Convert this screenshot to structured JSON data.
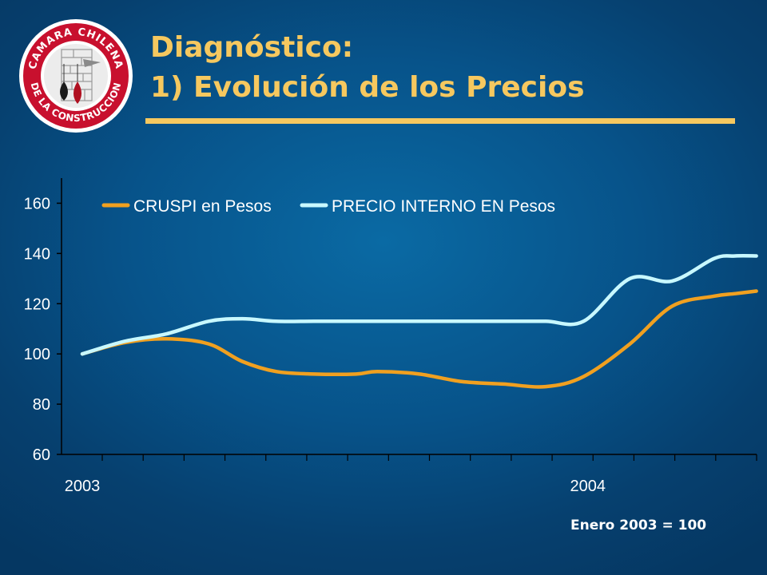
{
  "header": {
    "title_line1": "Diagnóstico:",
    "title_line2": "1) Evolución de los Precios"
  },
  "logo": {
    "text_top": "CAMARA CHILENA",
    "text_bottom": "DE LA CONSTRUCCION",
    "ring_color": "#c8102e"
  },
  "colors": {
    "title": "#f6c85f",
    "series_cruspi": "#f0a020",
    "series_precio": "#c8f8ff"
  },
  "chart_data": {
    "type": "line",
    "ylim": [
      60,
      170
    ],
    "yticks": [
      60,
      80,
      100,
      120,
      140,
      160
    ],
    "x_ticks": [
      {
        "label": "2003",
        "index": 0
      },
      {
        "label": "2004",
        "index": 12
      }
    ],
    "x_count": 16,
    "legend_position": "top",
    "grid": false,
    "series": [
      {
        "name": "CRUSPI en Pesos",
        "color": "#f0a020",
        "values": [
          100,
          104.5,
          106,
          104,
          97,
          93,
          92,
          92,
          93,
          92,
          89,
          88,
          87,
          91,
          104,
          119,
          123,
          124,
          125
        ]
      },
      {
        "name": "PRECIO INTERNO EN Pesos",
        "color": "#c8f8ff",
        "values": [
          100,
          105,
          108,
          113,
          114,
          113,
          113,
          113,
          113,
          113,
          113,
          113,
          113,
          113,
          130,
          129,
          138,
          139,
          139
        ]
      }
    ],
    "x_points": [
      0,
      1,
      2,
      3,
      3.8,
      4.6,
      5.5,
      6.5,
      7,
      8,
      9,
      10,
      11,
      11.9,
      13,
      14,
      15,
      15.5,
      16
    ],
    "annotation": "Enero 2003 = 100"
  }
}
